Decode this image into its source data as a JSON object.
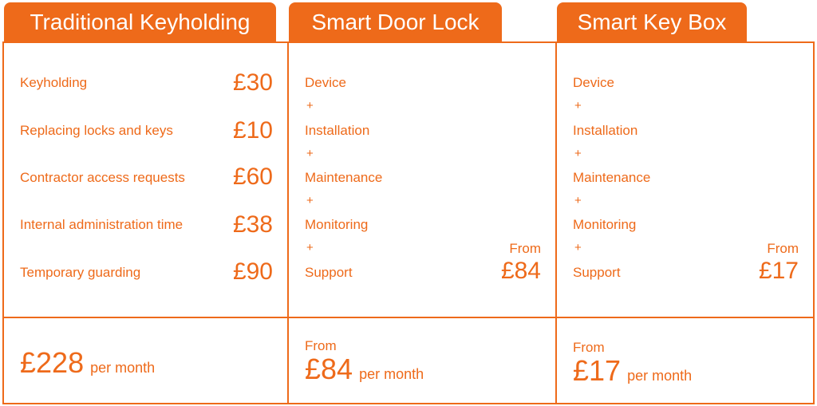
{
  "traditional": {
    "title": "Traditional Keyholding",
    "rows": [
      {
        "label": "Keyholding",
        "price": "£30"
      },
      {
        "label": "Replacing locks and keys",
        "price": "£10"
      },
      {
        "label": "Contractor access requests",
        "price": "£60"
      },
      {
        "label": "Internal administration time",
        "price": "£38"
      },
      {
        "label": "Temporary guarding",
        "price": "£90"
      }
    ],
    "total": "£228",
    "per_month": "per month"
  },
  "smart_lock": {
    "title": "Smart Door Lock",
    "items": [
      "Device",
      "Installation",
      "Maintenance",
      "Monitoring",
      "Support"
    ],
    "plus": "+",
    "from_label": "From",
    "from_price": "£84",
    "bottom_from": "From",
    "total": "£84",
    "per_month": "per month"
  },
  "smart_box": {
    "title": "Smart Key Box",
    "items": [
      "Device",
      "Installation",
      "Maintenance",
      "Monitoring",
      "Support"
    ],
    "plus": "+",
    "from_label": "From",
    "from_price": "£17",
    "bottom_from": "From",
    "total": "£17",
    "per_month": "per month"
  }
}
